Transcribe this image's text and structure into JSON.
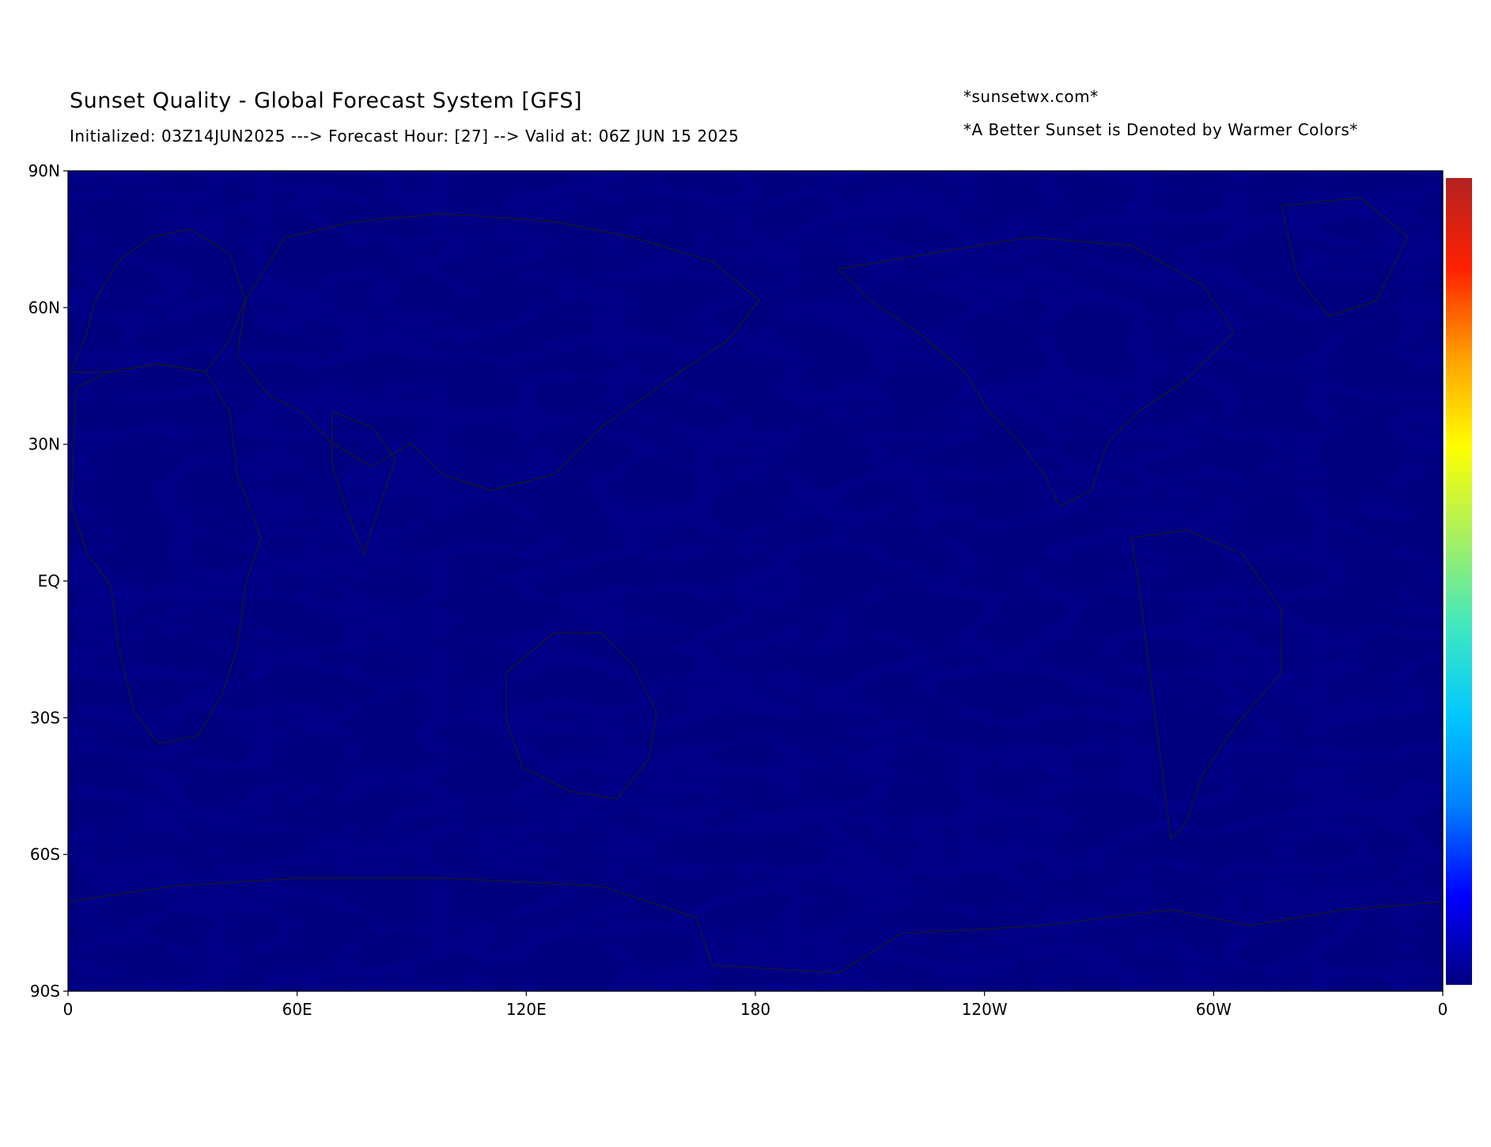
{
  "header": {
    "title": "Sunset Quality - Global Forecast System [GFS]",
    "subtitle": "Initialized: 03Z14JUN2025 ---> Forecast Hour: [27] --> Valid at: 06Z JUN 15 2025",
    "site": "*sunsetwx.com*",
    "note": "*A Better Sunset is Denoted by Warmer Colors*"
  },
  "map": {
    "projection": "plate-carree",
    "y_ticks": [
      {
        "label": "90N",
        "lat": 90
      },
      {
        "label": "60N",
        "lat": 60
      },
      {
        "label": "30N",
        "lat": 30
      },
      {
        "label": "EQ",
        "lat": 0
      },
      {
        "label": "30S",
        "lat": -30
      },
      {
        "label": "60S",
        "lat": -60
      },
      {
        "label": "90S",
        "lat": -90
      }
    ],
    "x_ticks": [
      {
        "label": "0",
        "lon": 0
      },
      {
        "label": "60E",
        "lon": 60
      },
      {
        "label": "120E",
        "lon": 120
      },
      {
        "label": "180",
        "lon": 180
      },
      {
        "label": "120W",
        "lon": 240
      },
      {
        "label": "60W",
        "lon": 300
      },
      {
        "label": "0",
        "lon": 360
      }
    ],
    "colorbar_colors": [
      "#000080",
      "#0000ff",
      "#0080ff",
      "#00c8ff",
      "#40e8c0",
      "#a8f060",
      "#ffff00",
      "#ffa000",
      "#ff2000",
      "#b22222"
    ]
  }
}
